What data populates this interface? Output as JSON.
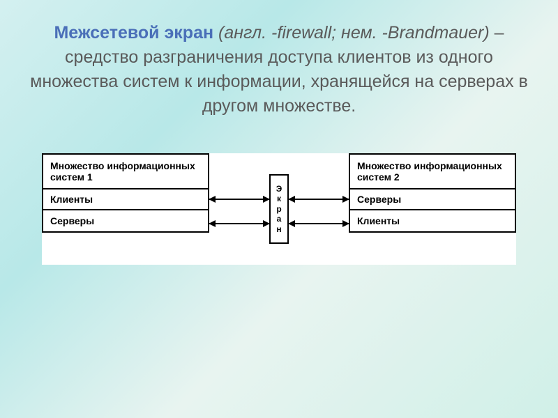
{
  "heading": {
    "term": "Межсетевой экран",
    "etym": " (англ. -firewall; нем. -Brandmauer)",
    "rest": " – средство разграничения доступа клиентов из одного множества систем к информации, хранящейся на серверах в другом множестве.",
    "term_color": "#4a6fb8",
    "text_color": "#5a5a5a",
    "fontsize": 25
  },
  "diagram": {
    "type": "flowchart",
    "background_color": "#ffffff",
    "border_color": "#000000",
    "box_fontsize": 14,
    "left_box": {
      "rows": [
        "Множество информационных систем 1",
        "Клиенты",
        "Серверы"
      ]
    },
    "right_box": {
      "rows": [
        "Множество информационных систем 2",
        "Серверы",
        "Клиенты"
      ]
    },
    "center_box": {
      "label": "Экран",
      "letters": [
        "Э",
        "к",
        "р",
        "а",
        "н"
      ]
    },
    "arrows": [
      {
        "from": "left.row1",
        "to": "center",
        "bidirectional": true
      },
      {
        "from": "left.row2",
        "to": "center",
        "bidirectional": true
      },
      {
        "from": "center",
        "to": "right.row1",
        "bidirectional": true
      },
      {
        "from": "center",
        "to": "right.row2",
        "bidirectional": true
      }
    ]
  },
  "slide_background": "linear-gradient(135deg, #d4f0f0 0%, #b8e8e8 30%, #e8f4f0 60%, #d0f0e8 100%)"
}
